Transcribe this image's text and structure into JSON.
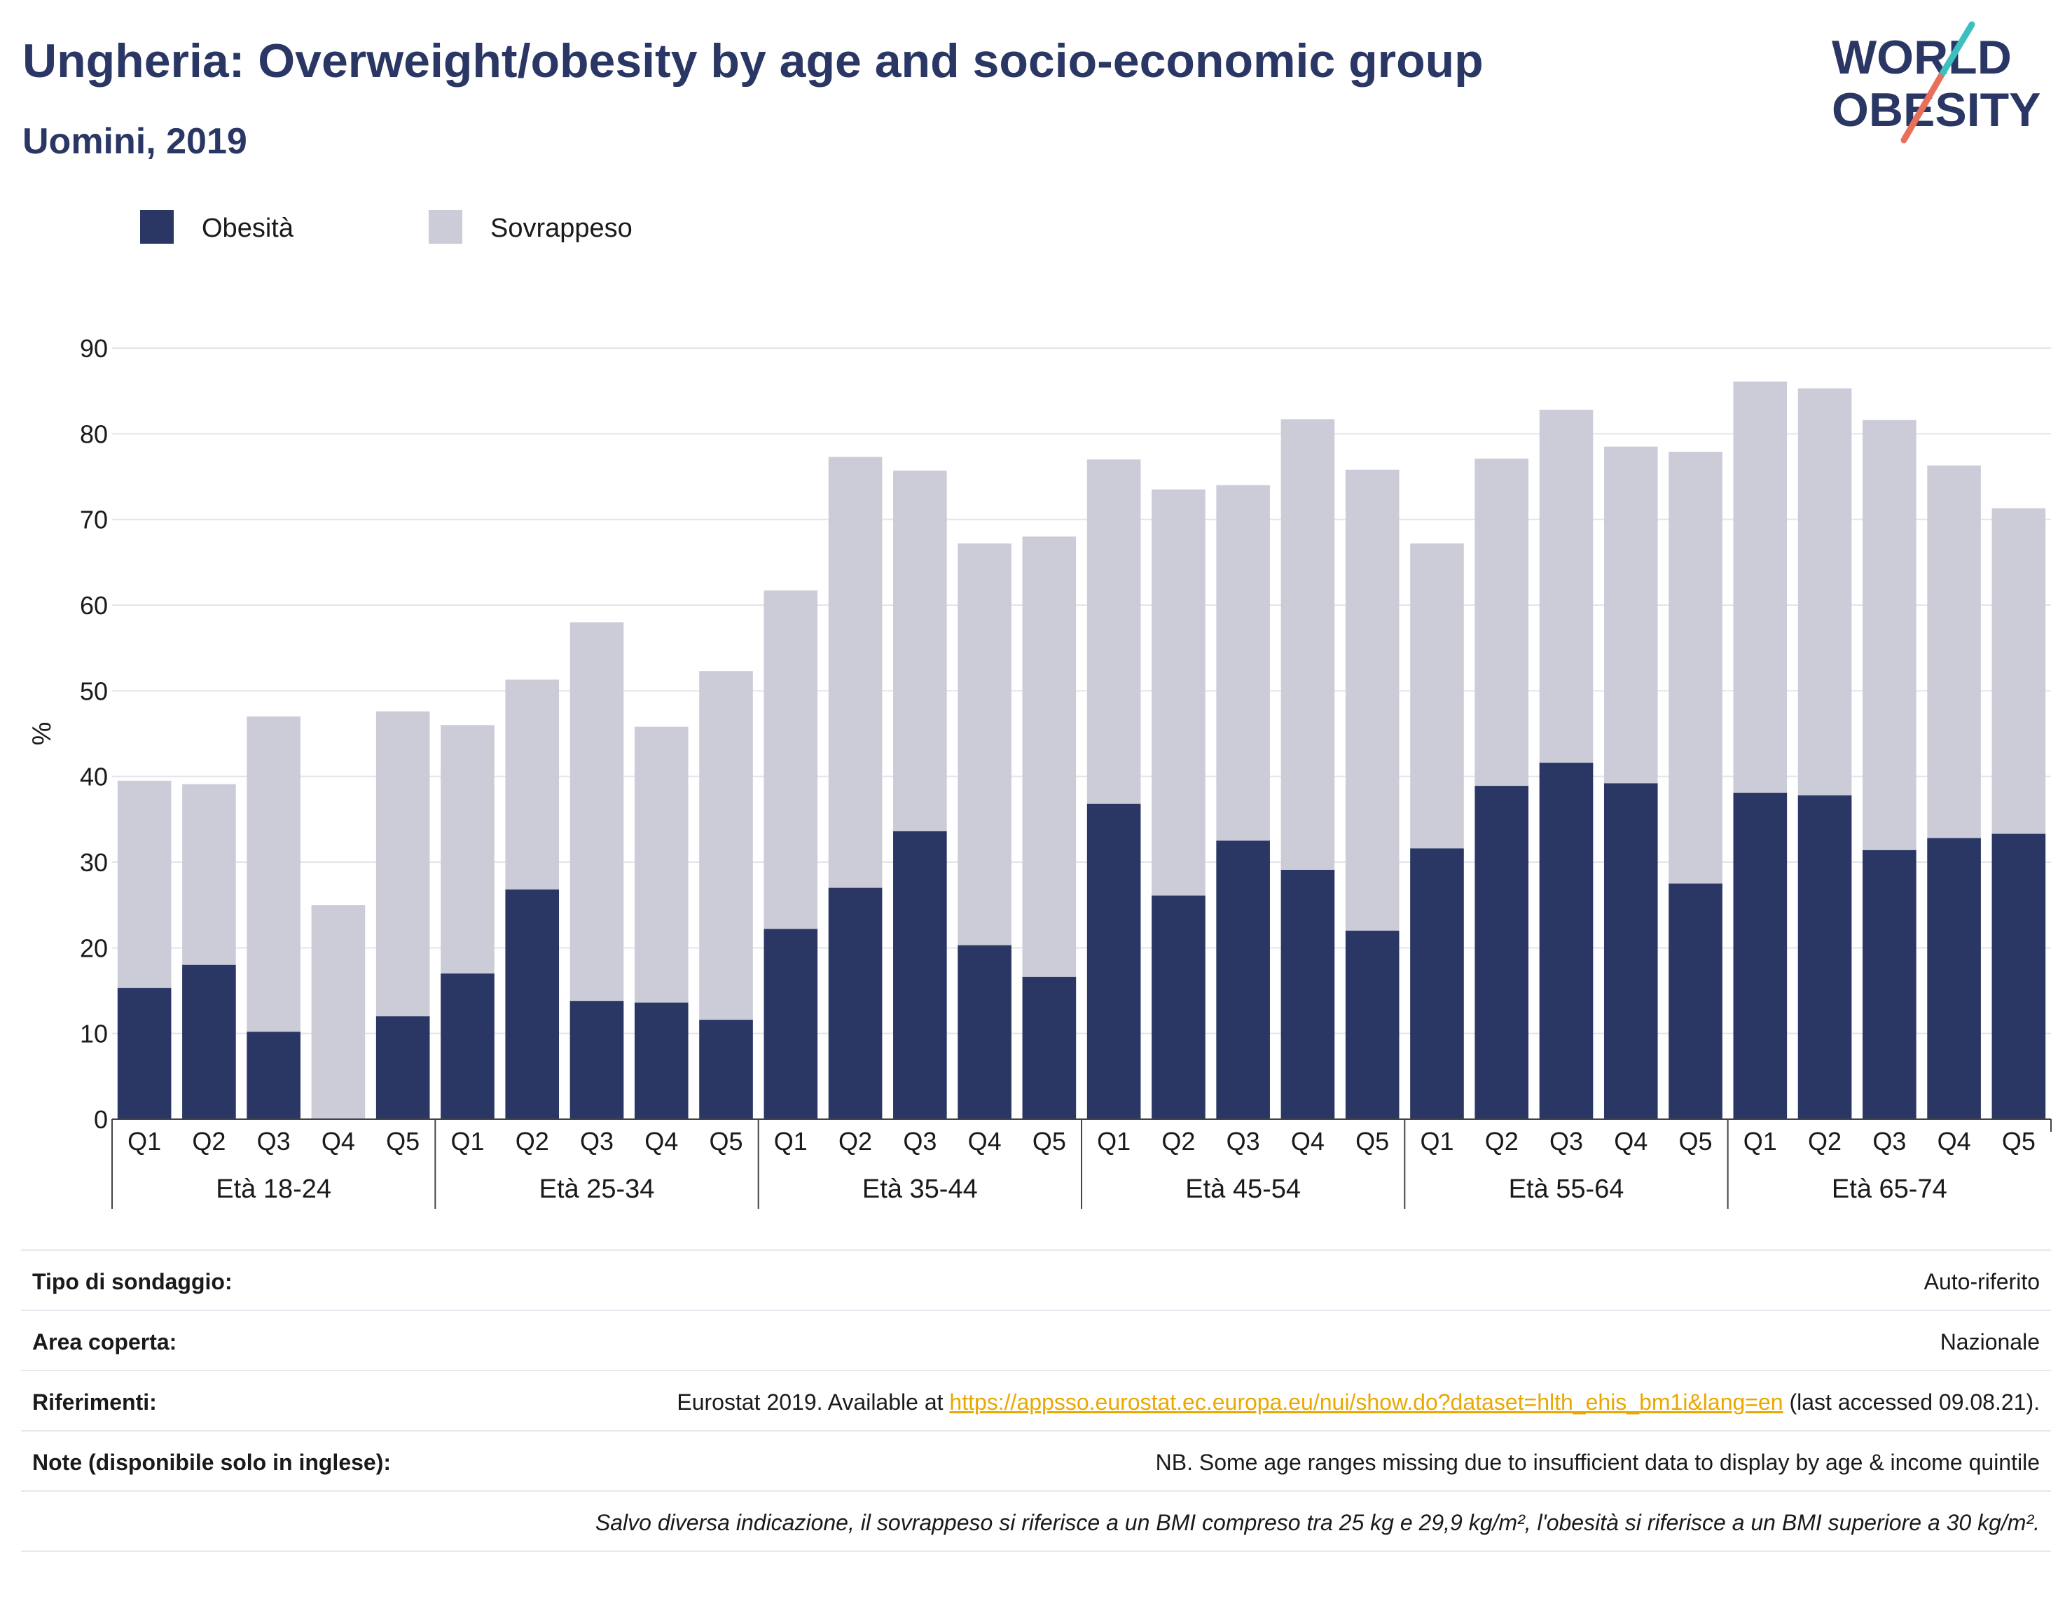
{
  "title": "Ungheria: Overweight/obesity by age and socio-economic group",
  "subtitle": "Uomini, 2019",
  "logo": {
    "line1": "WORLD",
    "line2": "OBESITY"
  },
  "colors": {
    "obesity": "#2a3764",
    "overweight": "#cbccd8",
    "accent_teal": "#3dbfbf",
    "accent_coral": "#e8705a"
  },
  "chart_data": {
    "type": "bar",
    "stacked": true,
    "legend": [
      {
        "name": "Obesità",
        "color": "#2a3764"
      },
      {
        "name": "Sovrappeso",
        "color": "#cbccd8"
      }
    ],
    "legend_position": "top-left",
    "ylabel": "%",
    "ylim": [
      0,
      90
    ],
    "yticks": [
      "0",
      "10",
      "20",
      "30",
      "40",
      "50",
      "60",
      "70",
      "80",
      "90"
    ],
    "grid": true,
    "groups": [
      {
        "label": "Età 18-24",
        "categories": [
          "Q1",
          "Q2",
          "Q3",
          "Q4",
          "Q5"
        ],
        "obesity": [
          15.3,
          18.0,
          10.2,
          0.0,
          12.0
        ],
        "total": [
          39.5,
          39.1,
          47.0,
          25.0,
          47.6
        ]
      },
      {
        "label": "Età 25-34",
        "categories": [
          "Q1",
          "Q2",
          "Q3",
          "Q4",
          "Q5"
        ],
        "obesity": [
          17.0,
          26.8,
          13.8,
          13.6,
          11.6
        ],
        "total": [
          46.0,
          51.3,
          58.0,
          45.8,
          52.3
        ]
      },
      {
        "label": "Età 35-44",
        "categories": [
          "Q1",
          "Q2",
          "Q3",
          "Q4",
          "Q5"
        ],
        "obesity": [
          22.2,
          27.0,
          33.6,
          20.3,
          16.6
        ],
        "total": [
          61.7,
          77.3,
          75.7,
          67.2,
          68.0
        ]
      },
      {
        "label": "Età 45-54",
        "categories": [
          "Q1",
          "Q2",
          "Q3",
          "Q4",
          "Q5"
        ],
        "obesity": [
          36.8,
          26.1,
          32.5,
          29.1,
          22.0
        ],
        "total": [
          77.0,
          73.5,
          74.0,
          81.7,
          75.8
        ]
      },
      {
        "label": "Età 55-64",
        "categories": [
          "Q1",
          "Q2",
          "Q3",
          "Q4",
          "Q5"
        ],
        "obesity": [
          31.6,
          38.9,
          41.6,
          39.2,
          27.5
        ],
        "total": [
          67.2,
          77.1,
          82.8,
          78.5,
          77.9
        ]
      },
      {
        "label": "Età 65-74",
        "categories": [
          "Q1",
          "Q2",
          "Q3",
          "Q4",
          "Q5"
        ],
        "obesity": [
          38.1,
          37.8,
          31.4,
          32.8,
          33.3
        ],
        "total": [
          86.1,
          85.3,
          81.6,
          76.3,
          71.3
        ]
      }
    ]
  },
  "footer": {
    "rows": [
      {
        "label": "Tipo di sondaggio:",
        "value": "Auto-riferito"
      },
      {
        "label": "Area coperta:",
        "value": "Nazionale"
      },
      {
        "label": "Riferimenti:",
        "pre": "Eurostat 2019. Available at ",
        "link": "https://appsso.eurostat.ec.europa.eu/nui/show.do?dataset=hlth_ehis_bm1i&lang=en",
        "post": " (last accessed 09.08.21)."
      },
      {
        "label": "Note (disponibile solo in inglese):",
        "value": "NB. Some age ranges missing due to insufficient data to display by age & income quintile"
      }
    ],
    "note": "Salvo diversa indicazione, il sovrappeso si riferisce a un BMI compreso tra 25 kg e 29,9 kg/m², l'obesità si riferisce a un BMI superiore a 30 kg/m²."
  }
}
